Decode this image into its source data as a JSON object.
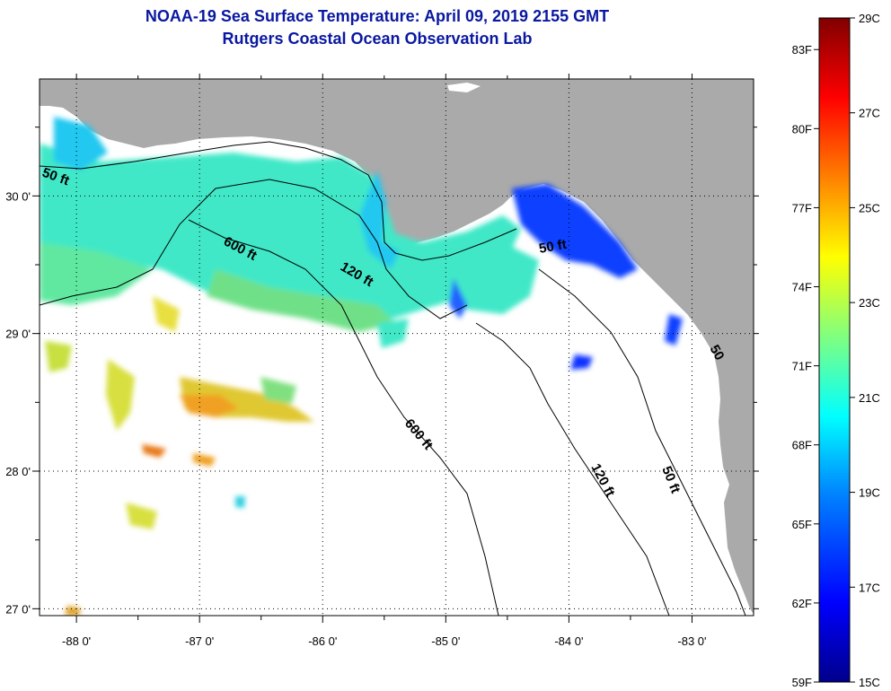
{
  "title": {
    "line1": "NOAA-19 Sea Surface Temperature:  April 09, 2019 2155 GMT",
    "line2": "Rutgers Coastal Ocean Observation Lab"
  },
  "map": {
    "lon_range": [
      -88.3,
      -82.5
    ],
    "lat_range": [
      26.95,
      30.85
    ],
    "lon_ticks": [
      {
        "value": -88,
        "label": "-88 0'"
      },
      {
        "value": -87,
        "label": "-87 0'"
      },
      {
        "value": -86,
        "label": "-86 0'"
      },
      {
        "value": -85,
        "label": "-85 0'"
      },
      {
        "value": -84,
        "label": "-84 0'"
      },
      {
        "value": -83,
        "label": "-83 0'"
      }
    ],
    "lat_ticks": [
      {
        "value": 30,
        "label": "30 0'"
      },
      {
        "value": 29,
        "label": "29 0'"
      },
      {
        "value": 28,
        "label": "28 0'"
      },
      {
        "value": 27,
        "label": "27 0'"
      }
    ],
    "contour_labels": [
      "50 ft",
      "600 ft",
      "120 ft",
      "50 ft",
      "600 ft",
      "120 ft",
      "50 ft",
      "50"
    ],
    "colors": {
      "land": "#aaaaaa",
      "ocean": "#ffffff",
      "grid": "#000000",
      "contour": "#000000"
    }
  },
  "colorbar": {
    "range_c": [
      15,
      29
    ],
    "celsius_labels": [
      "29C",
      "27C",
      "25C",
      "23C",
      "21C",
      "19C",
      "17C",
      "15C"
    ],
    "fahrenheit_labels": [
      "83F",
      "80F",
      "77F",
      "74F",
      "71F",
      "68F",
      "65F",
      "62F",
      "59F"
    ],
    "stops": [
      "#00008b",
      "#0000ff",
      "#0080ff",
      "#00ffff",
      "#80ff80",
      "#ffff00",
      "#ff8000",
      "#ff0000",
      "#800000"
    ]
  }
}
